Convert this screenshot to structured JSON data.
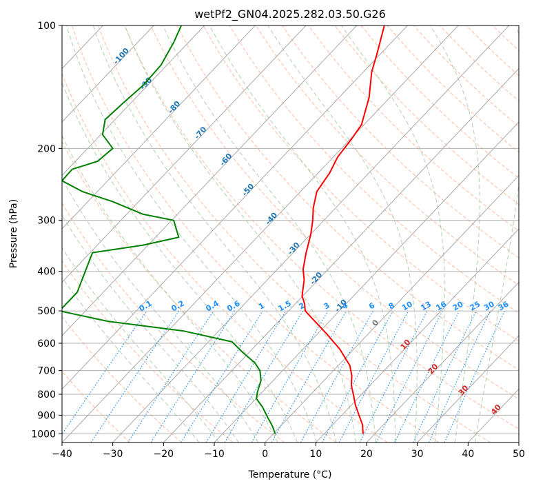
{
  "chart_data": {
    "type": "line",
    "title": "wetPf2_GN04.2025.282.03.50.G26",
    "xlabel": "Temperature (°C)",
    "ylabel": "Pressure (hPa)",
    "xlim": [
      -40,
      50
    ],
    "ylim": [
      1050,
      100
    ],
    "y_scale": "log",
    "grid": true,
    "x_ticks": [
      "−40",
      "−30",
      "−20",
      "−10",
      "0",
      "10",
      "20",
      "30",
      "40",
      "50"
    ],
    "y_ticks": [
      {
        "p": 100,
        "label": "100"
      },
      {
        "p": 200,
        "label": "200"
      },
      {
        "p": 300,
        "label": "300"
      },
      {
        "p": 400,
        "label": "400"
      },
      {
        "p": 500,
        "label": "500"
      },
      {
        "p": 600,
        "label": "600"
      },
      {
        "p": 700,
        "label": "700"
      },
      {
        "p": 800,
        "label": "800"
      },
      {
        "p": 900,
        "label": "900"
      },
      {
        "p": 1000,
        "label": "1000"
      }
    ],
    "series": [
      {
        "color": "#ff0000",
        "points": [
          [
            100,
            23.5
          ],
          [
            118,
            22
          ],
          [
            130,
            21
          ],
          [
            150,
            20.5
          ],
          [
            175,
            19
          ],
          [
            190,
            17
          ],
          [
            210,
            14.3
          ],
          [
            230,
            12.7
          ],
          [
            255,
            10.2
          ],
          [
            280,
            9.5
          ],
          [
            300,
            9.4
          ],
          [
            325,
            9
          ],
          [
            360,
            8.1
          ],
          [
            395,
            7.5
          ],
          [
            420,
            7.7
          ],
          [
            460,
            7.3
          ],
          [
            480,
            7.8
          ],
          [
            500,
            7.9
          ],
          [
            530,
            9.8
          ],
          [
            570,
            12.2
          ],
          [
            620,
            14.7
          ],
          [
            680,
            16.7
          ],
          [
            720,
            17.1
          ],
          [
            760,
            17
          ],
          [
            800,
            17.4
          ],
          [
            850,
            17.8
          ],
          [
            900,
            18.5
          ],
          [
            950,
            19.2
          ],
          [
            990,
            19.3
          ],
          [
            1000,
            19.3
          ]
        ]
      },
      {
        "color": "#008000",
        "points": [
          [
            100,
            -16.5
          ],
          [
            110,
            -18
          ],
          [
            125,
            -20.5
          ],
          [
            140,
            -24
          ],
          [
            155,
            -28
          ],
          [
            170,
            -31.5
          ],
          [
            185,
            -32
          ],
          [
            200,
            -30
          ],
          [
            215,
            -33
          ],
          [
            225,
            -38
          ],
          [
            240,
            -40
          ],
          [
            255,
            -36
          ],
          [
            270,
            -30
          ],
          [
            290,
            -24
          ],
          [
            300,
            -18
          ],
          [
            330,
            -17
          ],
          [
            345,
            -24
          ],
          [
            360,
            -34
          ],
          [
            450,
            -37
          ],
          [
            500,
            -40.5
          ],
          [
            530,
            -31
          ],
          [
            560,
            -16
          ],
          [
            595,
            -6.5
          ],
          [
            630,
            -4.5
          ],
          [
            670,
            -2
          ],
          [
            700,
            -1
          ],
          [
            740,
            -0.8
          ],
          [
            790,
            -1.5
          ],
          [
            820,
            -1.7
          ],
          [
            860,
            -0.5
          ],
          [
            910,
            0.5
          ],
          [
            960,
            1.5
          ],
          [
            1000,
            2
          ]
        ]
      }
    ],
    "dry_adiabats_theta_c": [
      -30,
      -20,
      -10,
      0,
      10,
      20,
      30,
      40,
      50,
      60,
      70,
      80,
      90,
      100,
      110,
      120,
      130,
      140,
      150,
      160,
      170,
      180,
      190,
      200
    ],
    "moist_adiabats_c": [
      -16,
      -12,
      -8,
      -4,
      0,
      4,
      8,
      12,
      16,
      20,
      24,
      28,
      32,
      36,
      40
    ],
    "mixing_ratios": [
      "0.1",
      "0.2",
      "0.4",
      "0.6",
      "1",
      "1.5",
      "2",
      "3",
      "4",
      "6",
      "8",
      "10",
      "13",
      "16",
      "20",
      "25",
      "30",
      "36"
    ],
    "isotherm_labels_blue": [
      "-100",
      "-90",
      "-80",
      "-70",
      "-60",
      "-50",
      "-40",
      "-30",
      "-20",
      "-10"
    ],
    "isotherm_labels_red": [
      "10",
      "20",
      "30",
      "40"
    ],
    "isotherm_label_zero": "0",
    "colors": {
      "temperature": "#ff0000",
      "dewpoint": "#008000",
      "isotherm_label_blue": "#1f77b4",
      "isotherm_label_red": "#d62728",
      "mixing_ratio": "#1e90ff",
      "dry_adiabat": "#ffa07a",
      "moist_adiabat": "#8fbc8f",
      "skewed_isotherm": "#aaaaaa",
      "isobar_grid": "#b0b0b0"
    }
  }
}
